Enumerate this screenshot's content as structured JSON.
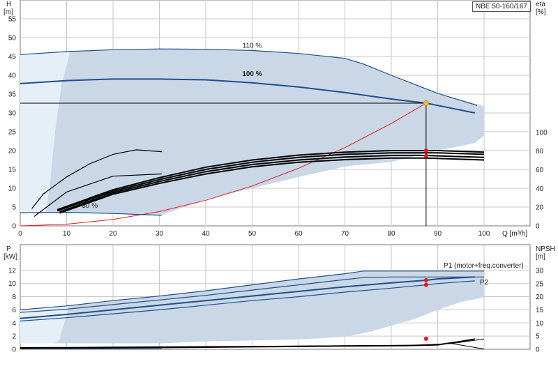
{
  "model": "NBE 50-160/167",
  "colors": {
    "envelope": "#c9d7e6",
    "envelope_light": "#e6eef7",
    "curve": "#1f4f8a",
    "system": "#e8161a",
    "marker": "#e8161a",
    "op_point": "#f3c431",
    "black": "#000000",
    "grid": "#c7c7c7"
  },
  "chart_data": [
    {
      "id": "head",
      "type": "line",
      "ylabel": "H",
      "yunit": "[m]",
      "y2label": "eta",
      "y2unit": "[%]",
      "xlabel": "Q",
      "xunit": "[m³/h]",
      "xlim": [
        0,
        100
      ],
      "ylim": [
        0,
        60
      ],
      "y2lim": [
        0,
        100
      ],
      "xticks": [
        0,
        10,
        20,
        30,
        40,
        50,
        60,
        70,
        80,
        90,
        100
      ],
      "yticks": [
        0,
        5,
        10,
        15,
        20,
        25,
        30,
        35,
        40,
        45,
        50,
        55
      ],
      "y2ticks": [
        0,
        20,
        40,
        60,
        80,
        100
      ],
      "grid": true,
      "series": [
        {
          "name": "110 %",
          "x": [
            0,
            10,
            20,
            30,
            40,
            50,
            60,
            70,
            74,
            80,
            90,
            98.5
          ],
          "y": [
            45.5,
            46.3,
            46.8,
            47,
            46.9,
            46.6,
            45.8,
            44.5,
            43,
            40,
            35.2,
            32
          ]
        },
        {
          "name": "100 %",
          "x": [
            0,
            10,
            20,
            30,
            40,
            50,
            60,
            70,
            80,
            87.5,
            90,
            98
          ],
          "y": [
            37.8,
            38.6,
            39,
            39,
            38.8,
            38,
            36.9,
            35.4,
            33.7,
            32.6,
            32,
            30
          ]
        },
        {
          "name": "30 %",
          "x": [
            0,
            10,
            20,
            30.5
          ],
          "y": [
            3.5,
            3.6,
            3.3,
            2.8
          ]
        },
        {
          "name": "",
          "x": [
            2.5,
            5,
            10,
            15,
            20,
            25,
            30.5
          ],
          "y": [
            4.6,
            8.5,
            13,
            16.5,
            19,
            20.2,
            19.7
          ]
        },
        {
          "name": "",
          "x": [
            3,
            10,
            20,
            30.5
          ],
          "y": [
            2.5,
            9,
            13.2,
            13.8
          ]
        },
        {
          "name": "",
          "x": [
            8,
            20,
            30,
            40,
            50,
            60,
            70,
            80,
            87.5,
            90,
            100
          ],
          "y": [
            4.3,
            9.6,
            12.8,
            15.6,
            17.5,
            18.8,
            19.6,
            20,
            20,
            20,
            19.6
          ]
        },
        {
          "name": "",
          "x": [
            8,
            20,
            30,
            40,
            50,
            60,
            70,
            80,
            87.5,
            90,
            100
          ],
          "y": [
            4.0,
            9.2,
            12.3,
            15.0,
            16.9,
            18.2,
            19.0,
            19.4,
            19.4,
            19.4,
            19.0
          ]
        },
        {
          "name": "",
          "x": [
            8.5,
            20,
            30,
            40,
            50,
            60,
            70,
            80,
            87.5,
            90,
            100
          ],
          "y": [
            3.7,
            8.8,
            11.8,
            14.4,
            16.3,
            17.5,
            18.3,
            18.7,
            18.7,
            18.6,
            18.2
          ]
        },
        {
          "name": "",
          "x": [
            8.5,
            20,
            30,
            40,
            50,
            60,
            70,
            80,
            87.5,
            90,
            100
          ],
          "y": [
            3.4,
            8.4,
            11.3,
            13.8,
            15.7,
            16.9,
            17.6,
            18.0,
            18.0,
            17.9,
            17.5
          ]
        }
      ],
      "system_curve": {
        "x": [
          0,
          10,
          20,
          30,
          40,
          50,
          60,
          70,
          80,
          87.5
        ],
        "y": [
          0,
          0.45,
          1.7,
          3.8,
          6.8,
          10.6,
          15.3,
          20.8,
          27.2,
          32.6
        ]
      },
      "operating_point": {
        "x": 87.5,
        "y": 32.6
      },
      "markers": [
        {
          "x": 87.5,
          "y": 20.0
        },
        {
          "x": 87.5,
          "y": 18.6
        }
      ],
      "envelope_outer": {
        "upper": [
          [
            0,
            45.5
          ],
          [
            10,
            46.3
          ],
          [
            20,
            46.8
          ],
          [
            30,
            47
          ],
          [
            40,
            46.9
          ],
          [
            50,
            46.6
          ],
          [
            60,
            45.8
          ],
          [
            70,
            44.5
          ],
          [
            74,
            43
          ],
          [
            80,
            40
          ],
          [
            90,
            35.2
          ],
          [
            100,
            31.8
          ]
        ],
        "lower": [
          [
            100,
            24
          ],
          [
            98,
            22
          ],
          [
            90,
            20
          ],
          [
            80,
            17
          ],
          [
            70,
            15.8
          ],
          [
            60,
            13
          ],
          [
            50,
            10
          ],
          [
            40,
            7
          ],
          [
            30.5,
            2.9
          ],
          [
            20,
            3.3
          ],
          [
            10,
            3.6
          ],
          [
            0,
            3.5
          ]
        ]
      },
      "envelope_inner_left": [
        [
          0,
          45.5
        ],
        [
          10.8,
          46.3
        ],
        [
          9,
          38
        ],
        [
          7.5,
          25
        ],
        [
          6.5,
          12
        ],
        [
          5.5,
          3.6
        ],
        [
          0,
          3.5
        ]
      ]
    },
    {
      "id": "power",
      "type": "line",
      "ylabel": "P",
      "yunit": "[kW]",
      "y2label": "NPSH",
      "y2unit": "[m]",
      "xlim": [
        0,
        100
      ],
      "ylim": [
        0,
        14
      ],
      "y2lim": [
        0,
        35
      ],
      "yticks": [
        0,
        2,
        4,
        6,
        8,
        10,
        12
      ],
      "y2ticks": [
        0,
        5,
        10,
        15,
        20,
        25,
        30
      ],
      "grid": true,
      "series": [
        {
          "name": "P1 (motor+freq.converter)",
          "x": [
            0,
            10,
            20,
            30,
            40,
            50,
            60,
            70,
            74,
            80,
            90,
            100
          ],
          "y": [
            6.0,
            6.6,
            7.4,
            8.1,
            8.9,
            9.8,
            10.7,
            11.5,
            11.9,
            11.9,
            11.9,
            11.9
          ]
        },
        {
          "name": "",
          "x": [
            0,
            10,
            20,
            30,
            40,
            50,
            60,
            70,
            74,
            80,
            90,
            100
          ],
          "y": [
            5.6,
            6.1,
            6.8,
            7.5,
            8.2,
            9.0,
            9.8,
            10.6,
            10.9,
            11.0,
            11.0,
            11.0
          ]
        },
        {
          "name": "",
          "x": [
            0,
            10,
            20,
            30,
            40,
            50,
            60,
            70,
            80,
            87.5,
            90,
            98
          ],
          "y": [
            4.7,
            5.3,
            6.0,
            6.7,
            7.4,
            8.1,
            8.8,
            9.5,
            10.1,
            10.5,
            10.7,
            11.0
          ]
        },
        {
          "name": "P2",
          "x": [
            0,
            10,
            20,
            30,
            40,
            50,
            60,
            70,
            80,
            87.5,
            90,
            98
          ],
          "y": [
            4.3,
            4.8,
            5.4,
            6.0,
            6.7,
            7.4,
            8.0,
            8.7,
            9.3,
            9.8,
            10.0,
            10.4
          ]
        }
      ],
      "npsh_series": [
        {
          "x": [
            0,
            10,
            20,
            30,
            40,
            50,
            60,
            70,
            75,
            83,
            88,
            90,
            94,
            98
          ],
          "y": [
            0.4,
            0.45,
            0.55,
            0.65,
            0.8,
            0.95,
            1.1,
            1.25,
            1.3,
            1.4,
            1.6,
            1.7,
            2.7,
            3.9
          ]
        },
        {
          "x": [
            0,
            10,
            20,
            30,
            40,
            50,
            60,
            70,
            78,
            85,
            93,
            100
          ],
          "y": [
            0.7,
            0.75,
            0.85,
            0.95,
            1.05,
            1.15,
            1.25,
            1.35,
            1.45,
            1.55,
            2.2,
            3.9
          ]
        },
        {
          "x": [
            93,
            100
          ],
          "y": [
            2.2,
            0.1
          ]
        },
        {
          "x": [
            3,
            10,
            20,
            30.5
          ],
          "y": [
            0.15,
            0.15,
            0.15,
            0.15
          ]
        }
      ],
      "markers": [
        {
          "x": 87.5,
          "y": 10.5
        },
        {
          "x": 87.5,
          "y": 9.8
        },
        {
          "x": 87.5,
          "y": 1.6
        }
      ],
      "envelope_outer": {
        "upper": [
          [
            0,
            6.0
          ],
          [
            10,
            6.6
          ],
          [
            20,
            7.4
          ],
          [
            30,
            8.1
          ],
          [
            40,
            8.9
          ],
          [
            50,
            9.8
          ],
          [
            60,
            10.7
          ],
          [
            70,
            11.5
          ],
          [
            74,
            11.9
          ],
          [
            100,
            11.9
          ]
        ],
        "lower": [
          [
            100,
            7.9
          ],
          [
            95,
            7.2
          ],
          [
            90,
            6.0
          ],
          [
            85,
            4.6
          ],
          [
            80,
            3.6
          ],
          [
            75,
            2.6
          ],
          [
            70,
            1.9
          ],
          [
            60,
            1.5
          ],
          [
            40,
            1.2
          ],
          [
            30.5,
            0.9
          ],
          [
            0,
            0.9
          ]
        ]
      },
      "envelope_inner_left": [
        [
          0,
          6.0
        ],
        [
          10.5,
          6.6
        ],
        [
          9.5,
          4.0
        ],
        [
          8.5,
          1.5
        ],
        [
          7.5,
          0.9
        ],
        [
          0,
          0.9
        ]
      ]
    }
  ]
}
